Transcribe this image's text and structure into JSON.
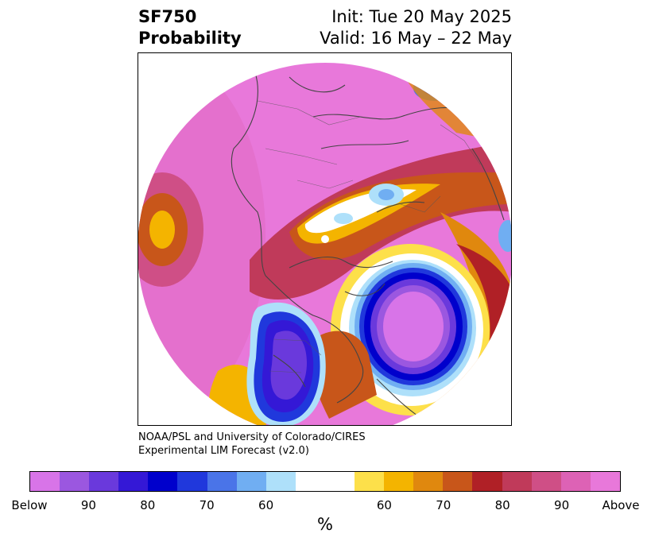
{
  "title": {
    "left_line1": "SF750",
    "left_line2": "Probability",
    "right_line1": "Init: Tue 20 May 2025",
    "right_line2": "Valid: 16 May – 22 May"
  },
  "credits": {
    "line1": "NOAA/PSL and University of Colorado/CIRES",
    "line2": "Experimental LIM Forecast (v2.0)"
  },
  "colorbar": {
    "unit": "%",
    "segments": [
      "#d874e8",
      "#9b57e0",
      "#6a39dc",
      "#3418d6",
      "#0000cc",
      "#2038dc",
      "#4a74e8",
      "#70aef2",
      "#aee0fa",
      "#ffffff",
      "#ffffff",
      "#fde04a",
      "#f4b400",
      "#e0880e",
      "#c8561a",
      "#b02026",
      "#c03a5a",
      "#cf4f86",
      "#dd62b5",
      "#e878da"
    ],
    "tick_labels": [
      "Below",
      "90",
      "80",
      "70",
      "60",
      "60",
      "70",
      "80",
      "90",
      "Above"
    ]
  },
  "map": {
    "background_color": "#e878da",
    "region": "Northern Hemisphere polar view"
  }
}
